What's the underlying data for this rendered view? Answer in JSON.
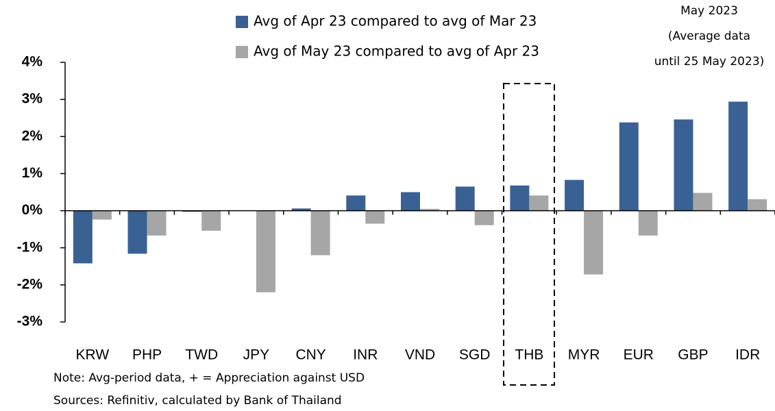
{
  "chart_data": {
    "type": "bar",
    "categories": [
      "KRW",
      "PHP",
      "TWD",
      "JPY",
      "CNY",
      "INR",
      "VND",
      "SGD",
      "THB",
      "MYR",
      "EUR",
      "GBP",
      "IDR"
    ],
    "series": [
      {
        "name": "Avg of Apr 23 compared to avg of Mar 23",
        "color": "#3a6194",
        "values": [
          -1.42,
          -1.16,
          -0.03,
          0,
          0.06,
          0.41,
          0.5,
          0.65,
          0.68,
          0.83,
          2.38,
          2.46,
          2.94
        ]
      },
      {
        "name": "Avg of May 23 compared to avg of Apr 23",
        "color": "#a6a6a6",
        "values": [
          -0.24,
          -0.67,
          -0.54,
          -2.2,
          -1.2,
          -0.35,
          0.05,
          -0.39,
          0.41,
          -1.72,
          -0.67,
          0.48,
          0.31
        ]
      }
    ],
    "ylim": [
      -3,
      4
    ],
    "yticks": [
      {
        "value": -3,
        "label": "-3%"
      },
      {
        "value": -2,
        "label": "-2%"
      },
      {
        "value": -1,
        "label": "-1%"
      },
      {
        "value": 0,
        "label": "0%"
      },
      {
        "value": 1,
        "label": "1%"
      },
      {
        "value": 2,
        "label": "2%"
      },
      {
        "value": 3,
        "label": "3%"
      },
      {
        "value": 4,
        "label": "4%"
      }
    ],
    "annotation": [
      "May 2023",
      "(Average data",
      "until 25 May 2023)"
    ],
    "notes": [
      "Note: Avg-period data, + = Appreciation against USD",
      "Sources: Refinitiv, calculated by Bank of Thailand"
    ]
  }
}
